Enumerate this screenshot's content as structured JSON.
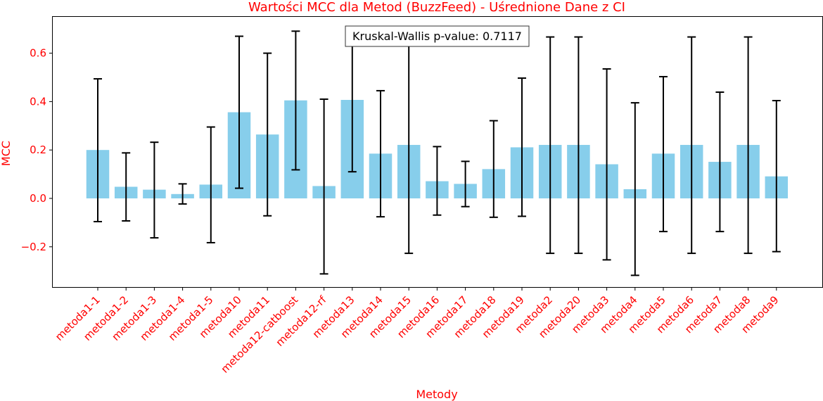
{
  "chart_data": {
    "type": "bar",
    "title": "Wartości MCC dla Metod (BuzzFeed) - Uśrednione Dane z CI",
    "xlabel": "Metody",
    "ylabel": "MCC",
    "ylim": [
      -0.37,
      0.75
    ],
    "yticks": [
      -0.2,
      0.0,
      0.2,
      0.4,
      0.6
    ],
    "ytick_labels": [
      "−0.2",
      "0.0",
      "0.2",
      "0.4",
      "0.6"
    ],
    "grid": false,
    "categories": [
      "metoda1-1",
      "metoda1-2",
      "metoda1-3",
      "metoda1-4",
      "metoda1-5",
      "metoda10",
      "metoda11",
      "metoda12-catboost",
      "metoda12-rf",
      "metoda13",
      "metoda14",
      "metoda15",
      "metoda16",
      "metoda17",
      "metoda18",
      "metoda19",
      "metoda2",
      "metoda20",
      "metoda3",
      "metoda4",
      "metoda5",
      "metoda6",
      "metoda7",
      "metoda8",
      "metoda9"
    ],
    "values": [
      0.2,
      0.048,
      0.036,
      0.018,
      0.057,
      0.356,
      0.264,
      0.405,
      0.051,
      0.407,
      0.185,
      0.221,
      0.071,
      0.06,
      0.121,
      0.211,
      0.221,
      0.221,
      0.141,
      0.038,
      0.185,
      0.221,
      0.151,
      0.221,
      0.091
    ],
    "ci_lower": [
      -0.096,
      -0.093,
      -0.163,
      -0.023,
      -0.183,
      0.042,
      -0.072,
      0.118,
      -0.312,
      0.11,
      -0.076,
      -0.227,
      -0.069,
      -0.034,
      -0.078,
      -0.074,
      -0.227,
      -0.227,
      -0.254,
      -0.318,
      -0.137,
      -0.227,
      -0.137,
      -0.227,
      -0.22
    ],
    "ci_upper": [
      0.494,
      0.188,
      0.232,
      0.06,
      0.295,
      0.67,
      0.6,
      0.691,
      0.41,
      0.67,
      0.445,
      0.67,
      0.214,
      0.153,
      0.321,
      0.497,
      0.667,
      0.667,
      0.535,
      0.395,
      0.503,
      0.667,
      0.439,
      0.667,
      0.404
    ],
    "bar_color": "#87ceeb",
    "errorbar_color": "#000000",
    "label_color": "#ff0000",
    "annotation": "Kruskal-Wallis p-value: 0.7117"
  }
}
